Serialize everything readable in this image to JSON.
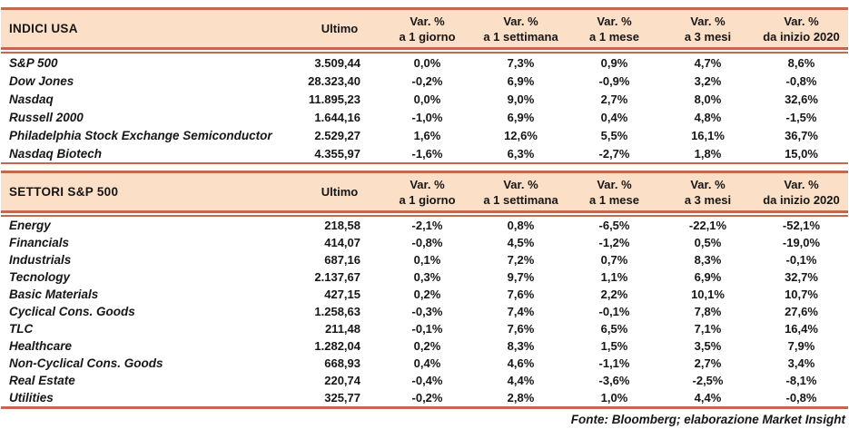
{
  "colors": {
    "accent_border": "#C3684E",
    "header_bg": "#FCDFC7",
    "text": "#161616"
  },
  "columns": {
    "ultimo_label": "Ultimo",
    "var_cols": [
      {
        "line1": "Var. %",
        "line2": "a 1 giorno"
      },
      {
        "line1": "Var. %",
        "line2": "a 1 settimana"
      },
      {
        "line1": "Var. %",
        "line2": "a 1 mese"
      },
      {
        "line1": "Var. %",
        "line2": "a 3 mesi"
      },
      {
        "line1": "Var. %",
        "line2": "da inizio 2020"
      }
    ]
  },
  "tables": [
    {
      "title": "INDICI USA",
      "rows": [
        {
          "name": "S&P 500",
          "ultimo": "3.509,44",
          "values": [
            "0,0%",
            "7,3%",
            "0,9%",
            "4,7%",
            "8,6%"
          ]
        },
        {
          "name": "Dow Jones",
          "ultimo": "28.323,40",
          "values": [
            "-0,2%",
            "6,9%",
            "-0,9%",
            "3,2%",
            "-0,8%"
          ]
        },
        {
          "name": "Nasdaq",
          "ultimo": "11.895,23",
          "values": [
            "0,0%",
            "9,0%",
            "2,7%",
            "8,0%",
            "32,6%"
          ]
        },
        {
          "name": "Russell 2000",
          "ultimo": "1.644,16",
          "values": [
            "-1,0%",
            "6,9%",
            "0,4%",
            "4,8%",
            "-1,5%"
          ]
        },
        {
          "name": "Philadelphia Stock Exchange Semiconductor",
          "ultimo": "2.529,27",
          "values": [
            "1,6%",
            "12,6%",
            "5,5%",
            "16,1%",
            "36,7%"
          ]
        },
        {
          "name": "Nasdaq Biotech",
          "ultimo": "4.355,97",
          "values": [
            "-1,6%",
            "6,3%",
            "-2,7%",
            "1,8%",
            "15,0%"
          ]
        }
      ]
    },
    {
      "title": "SETTORI S&P 500",
      "rows": [
        {
          "name": "Energy",
          "ultimo": "218,58",
          "values": [
            "-2,1%",
            "0,8%",
            "-6,5%",
            "-22,1%",
            "-52,1%"
          ]
        },
        {
          "name": "Financials",
          "ultimo": "414,07",
          "values": [
            "-0,8%",
            "4,5%",
            "-1,2%",
            "0,5%",
            "-19,0%"
          ]
        },
        {
          "name": "Industrials",
          "ultimo": "687,16",
          "values": [
            "0,1%",
            "7,2%",
            "0,7%",
            "8,3%",
            "-0,1%"
          ]
        },
        {
          "name": "Tecnology",
          "ultimo": "2.137,67",
          "values": [
            "0,3%",
            "9,7%",
            "1,1%",
            "6,9%",
            "32,7%"
          ]
        },
        {
          "name": "Basic Materials",
          "ultimo": "427,15",
          "values": [
            "0,2%",
            "7,6%",
            "2,2%",
            "10,1%",
            "10,7%"
          ]
        },
        {
          "name": "Cyclical Cons. Goods",
          "ultimo": "1.258,63",
          "values": [
            "-0,3%",
            "7,4%",
            "-0,1%",
            "7,8%",
            "27,6%"
          ]
        },
        {
          "name": "TLC",
          "ultimo": "211,48",
          "values": [
            "-0,1%",
            "7,6%",
            "6,5%",
            "7,1%",
            "16,4%"
          ]
        },
        {
          "name": "Healthcare",
          "ultimo": "1.282,04",
          "values": [
            "0,2%",
            "8,3%",
            "1,5%",
            "3,5%",
            "7,9%"
          ]
        },
        {
          "name": "Non-Cyclical Cons. Goods",
          "ultimo": "668,93",
          "values": [
            "0,4%",
            "4,6%",
            "-1,1%",
            "2,7%",
            "3,4%"
          ]
        },
        {
          "name": "Real Estate",
          "ultimo": "220,74",
          "values": [
            "-0,4%",
            "4,4%",
            "-3,6%",
            "-2,5%",
            "-8,1%"
          ]
        },
        {
          "name": "Utilities",
          "ultimo": "325,77",
          "values": [
            "-0,2%",
            "2,8%",
            "1,0%",
            "4,4%",
            "-0,8%"
          ]
        }
      ]
    }
  ],
  "footer": "Fonte: Bloomberg; elaborazione Market Insight"
}
